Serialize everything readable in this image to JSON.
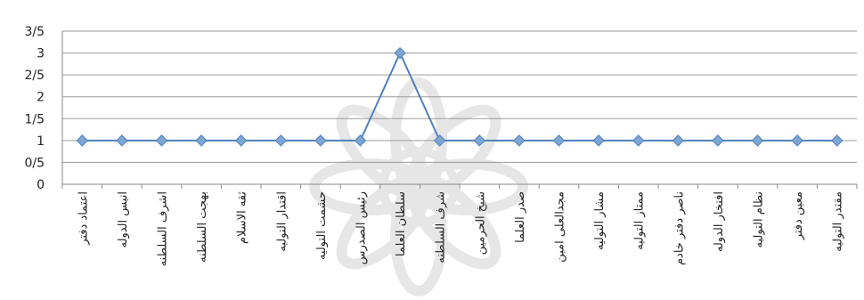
{
  "chart_data": {
    "type": "line",
    "title": "",
    "xlabel": "",
    "ylabel": "",
    "ylim": [
      0,
      3.5
    ],
    "y_ticks": [
      {
        "value": 0,
        "label": "0"
      },
      {
        "value": 0.5,
        "label": "0/5"
      },
      {
        "value": 1,
        "label": "1"
      },
      {
        "value": 1.5,
        "label": "1/5"
      },
      {
        "value": 2,
        "label": "2"
      },
      {
        "value": 2.5,
        "label": "2/5"
      },
      {
        "value": 3,
        "label": "3"
      },
      {
        "value": 3.5,
        "label": "3/5"
      }
    ],
    "grid": true,
    "legend": "none",
    "categories": [
      "اعتماد دفتر",
      "انیس الدوله",
      "اشرف السلطنه",
      "بهجت السلطنه",
      "ثقه الاسلام",
      "اقتدار التولیه",
      "حشمت التولیه",
      "رئیس الصدرس",
      "سلطان العلما",
      "شرف السلطنه",
      "شیخ الحرمین",
      "صدر العلما",
      "مجدالعلی امین",
      "مشار التولیه",
      "ممتاز التولیه",
      "ناصر دفتر خادم",
      "افتخار الدوله",
      "نظام التولیه",
      "معین دفتر",
      "مقتدر التولیه"
    ],
    "series": [
      {
        "values": [
          1,
          1,
          1,
          1,
          1,
          1,
          1,
          1,
          3,
          1,
          1,
          1,
          1,
          1,
          1,
          1,
          1,
          1,
          1,
          1
        ],
        "color": "#4f81bd",
        "marker_color": "#7fa6d3"
      }
    ]
  }
}
